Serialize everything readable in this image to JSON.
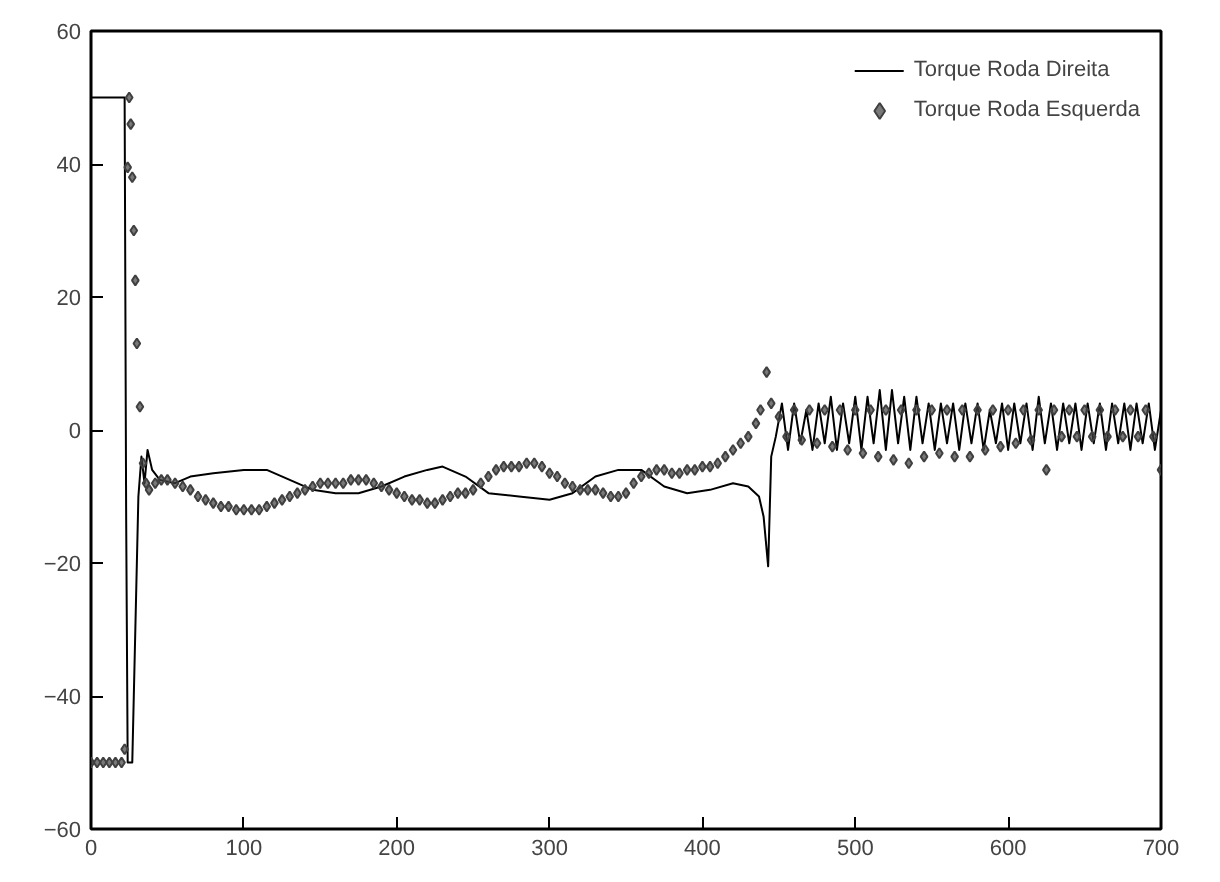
{
  "chart_data": {
    "type": "line",
    "xlim": [
      0,
      700
    ],
    "ylim": [
      -60,
      60
    ],
    "xticks": [
      0,
      100,
      200,
      300,
      400,
      500,
      600,
      700
    ],
    "yticks": [
      -60,
      -40,
      -20,
      0,
      20,
      40,
      60
    ],
    "grid": false,
    "legend": "top right",
    "series": [
      {
        "name": "Torque Roda Direita",
        "color": "#000000",
        "line_style": "solid",
        "x": [
          0,
          22,
          23,
          24,
          27,
          29,
          31,
          33,
          35,
          37,
          40,
          45,
          55,
          65,
          80,
          100,
          115,
          130,
          145,
          160,
          175,
          190,
          205,
          220,
          230,
          245,
          260,
          280,
          300,
          315,
          330,
          345,
          360,
          375,
          390,
          405,
          420,
          430,
          437,
          440,
          443,
          445,
          448,
          452,
          456,
          460,
          464,
          468,
          472,
          476,
          480,
          484,
          488,
          492,
          496,
          500,
          504,
          508,
          512,
          516,
          520,
          524,
          528,
          532,
          536,
          540,
          544,
          548,
          552,
          556,
          560,
          564,
          568,
          572,
          576,
          580,
          584,
          588,
          592,
          596,
          600,
          604,
          608,
          612,
          616,
          620,
          624,
          628,
          632,
          636,
          640,
          644,
          648,
          652,
          656,
          660,
          664,
          668,
          672,
          676,
          680,
          684,
          688,
          692,
          696,
          700
        ],
        "values": [
          50,
          50,
          -13,
          -50,
          -50,
          -30,
          -10,
          -4,
          -8,
          -3,
          -6,
          -7.5,
          -8,
          -7,
          -6.5,
          -6,
          -6,
          -7.5,
          -9,
          -9.5,
          -9.5,
          -8.5,
          -7,
          -6,
          -5.5,
          -7,
          -9.5,
          -10,
          -10.5,
          -9.5,
          -7,
          -6,
          -6,
          -8.5,
          -9.5,
          -9,
          -8,
          -8.5,
          -10,
          -13,
          -20.5,
          -4,
          -1,
          4,
          -3,
          4,
          -2,
          3,
          -3,
          4,
          -2,
          5,
          -3,
          4,
          -2,
          5,
          -3,
          5,
          -2,
          6,
          -3,
          6,
          -2,
          5,
          -3,
          5,
          -2,
          4,
          -3,
          4,
          -2,
          4,
          -3,
          4,
          -2,
          4,
          -3,
          3,
          -2,
          4,
          -3,
          4,
          -2,
          4,
          -3,
          5,
          -2,
          4,
          -3,
          4,
          -2,
          4,
          -3,
          4,
          -2,
          4,
          -3,
          4,
          -2,
          4,
          -3,
          4,
          -2,
          4,
          -3,
          3
        ]
      },
      {
        "name": "Torque Roda Esquerda",
        "type": "scatter",
        "marker": "diamond",
        "color": "#404040",
        "x": [
          0,
          4,
          8,
          12,
          16,
          20,
          22,
          24,
          25,
          26,
          27,
          28,
          29,
          30,
          32,
          34,
          36,
          38,
          42,
          46,
          50,
          55,
          60,
          65,
          70,
          75,
          80,
          85,
          90,
          95,
          100,
          105,
          110,
          115,
          120,
          125,
          130,
          135,
          140,
          145,
          150,
          155,
          160,
          165,
          170,
          175,
          180,
          185,
          190,
          195,
          200,
          205,
          210,
          215,
          220,
          225,
          230,
          235,
          240,
          245,
          250,
          255,
          260,
          265,
          270,
          275,
          280,
          285,
          290,
          295,
          300,
          305,
          310,
          315,
          320,
          325,
          330,
          335,
          340,
          345,
          350,
          355,
          360,
          365,
          370,
          375,
          380,
          385,
          390,
          395,
          400,
          405,
          410,
          415,
          420,
          425,
          430,
          435,
          438,
          442,
          445,
          450,
          455,
          460,
          465,
          470,
          475,
          480,
          485,
          490,
          495,
          500,
          505,
          510,
          515,
          520,
          525,
          530,
          535,
          540,
          545,
          550,
          555,
          560,
          565,
          570,
          575,
          580,
          585,
          590,
          595,
          600,
          605,
          610,
          615,
          620,
          625,
          630,
          635,
          640,
          645,
          650,
          655,
          660,
          665,
          670,
          675,
          680,
          685,
          690,
          695,
          700
        ],
        "values": [
          -50,
          -50,
          -50,
          -50,
          -50,
          -50,
          -48,
          39.5,
          50,
          46,
          38,
          30,
          22.5,
          13,
          3.5,
          -5,
          -8,
          -9,
          -8,
          -7.5,
          -7.5,
          -8,
          -8.5,
          -9,
          -10,
          -10.5,
          -11,
          -11.5,
          -11.5,
          -12,
          -12,
          -12,
          -12,
          -11.5,
          -11,
          -10.5,
          -10,
          -9.5,
          -9,
          -8.5,
          -8,
          -8,
          -8,
          -8,
          -7.5,
          -7.5,
          -7.5,
          -8,
          -8.5,
          -9,
          -9.5,
          -10,
          -10.5,
          -10.5,
          -11,
          -11,
          -10.5,
          -10,
          -9.5,
          -9.5,
          -9,
          -8,
          -7,
          -6,
          -5.5,
          -5.5,
          -5.5,
          -5,
          -5,
          -5.5,
          -6.5,
          -7,
          -8,
          -8.5,
          -9,
          -9,
          -9,
          -9.5,
          -10,
          -10,
          -9.5,
          -8,
          -7,
          -6.5,
          -6,
          -6,
          -6.5,
          -6.5,
          -6,
          -6,
          -5.5,
          -5.5,
          -5,
          -4,
          -3,
          -2,
          -1,
          1,
          3,
          8.7,
          4,
          2,
          -1,
          3,
          -1.5,
          3,
          -2,
          3,
          -2.5,
          3,
          -3,
          3,
          -3.5,
          3,
          -4,
          3,
          -4.5,
          3,
          -5,
          3,
          -4,
          3,
          -3.5,
          3,
          -4,
          3,
          -4,
          3,
          -3,
          3,
          -2.5,
          3,
          -2,
          3,
          -1.5,
          3,
          -6,
          3,
          -1,
          3,
          -1,
          3,
          -1,
          3,
          -1,
          3,
          -1,
          3,
          -1,
          3,
          -1,
          -6
        ]
      }
    ]
  }
}
